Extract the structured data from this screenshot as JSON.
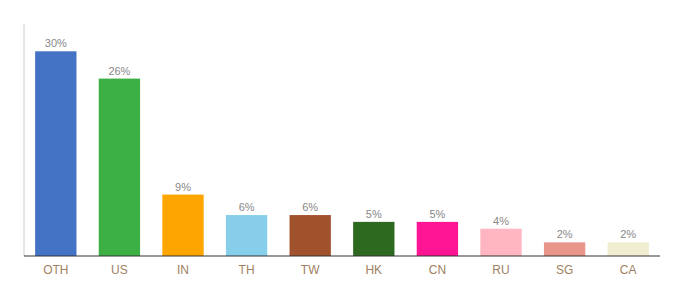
{
  "chart_data": {
    "type": "bar",
    "categories": [
      "OTH",
      "US",
      "IN",
      "TH",
      "TW",
      "HK",
      "CN",
      "RU",
      "SG",
      "CA"
    ],
    "values": [
      30,
      26,
      9,
      6,
      6,
      5,
      5,
      4,
      2,
      2
    ],
    "value_labels": [
      "30%",
      "26%",
      "9%",
      "6%",
      "6%",
      "5%",
      "5%",
      "4%",
      "2%",
      "2%"
    ],
    "colors": [
      "#4472C4",
      "#3CB044",
      "#FFA500",
      "#87CEEB",
      "#A0522D",
      "#2D6A1F",
      "#FF1493",
      "#FFB6C1",
      "#E8968A",
      "#F0EDD0"
    ],
    "ylim": [
      0,
      34
    ],
    "data_labels": true,
    "tick_labels": "x",
    "grid": false
  }
}
